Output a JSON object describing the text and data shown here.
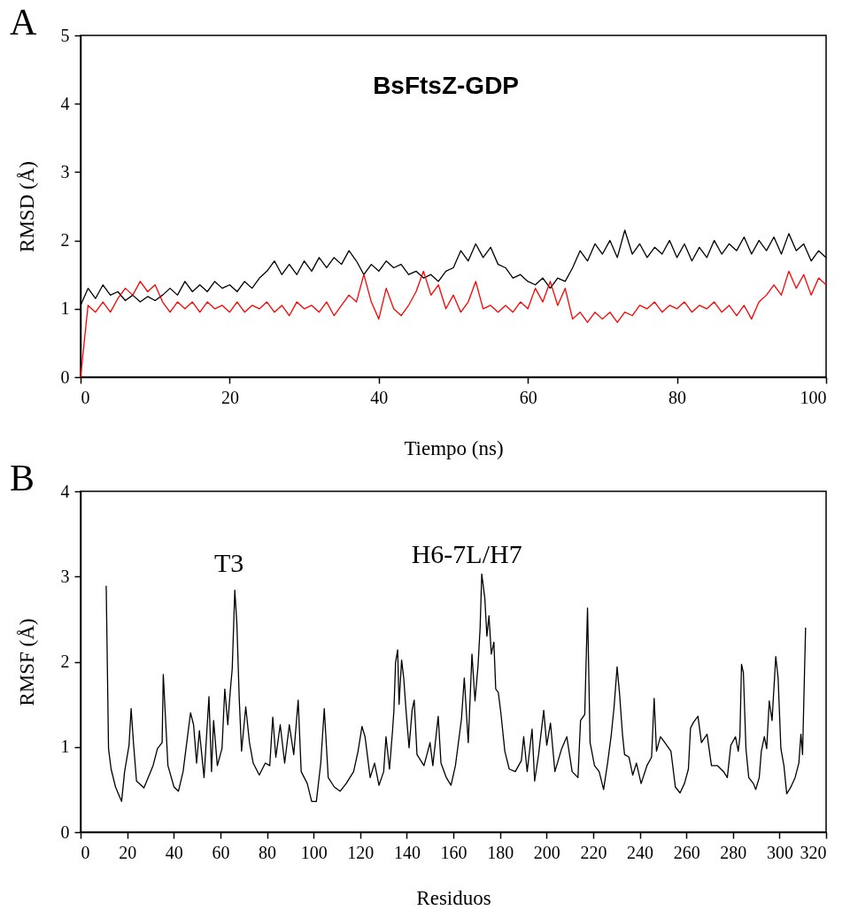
{
  "chart_data": [
    {
      "type": "line",
      "title": "A",
      "xlabel": "Tiempo (ns)",
      "ylabel": "RMSD (Å)",
      "xlim": [
        0,
        100
      ],
      "ylim": [
        0,
        5
      ],
      "xticks": [
        0,
        20,
        40,
        60,
        80,
        100
      ],
      "yticks": [
        0,
        1,
        2,
        3,
        4,
        5
      ],
      "annotations": [
        "BsFtsZ-GDP"
      ],
      "x": [
        0,
        1,
        2,
        3,
        4,
        5,
        6,
        7,
        8,
        9,
        10,
        11,
        12,
        13,
        14,
        15,
        16,
        17,
        18,
        19,
        20,
        21,
        22,
        23,
        24,
        25,
        26,
        27,
        28,
        29,
        30,
        31,
        32,
        33,
        34,
        35,
        36,
        37,
        38,
        39,
        40,
        41,
        42,
        43,
        44,
        45,
        46,
        47,
        48,
        49,
        50,
        51,
        52,
        53,
        54,
        55,
        56,
        57,
        58,
        59,
        60,
        61,
        62,
        63,
        64,
        65,
        66,
        67,
        68,
        69,
        70,
        71,
        72,
        73,
        74,
        75,
        76,
        77,
        78,
        79,
        80,
        81,
        82,
        83,
        84,
        85,
        86,
        87,
        88,
        89,
        90,
        91,
        92,
        93,
        94,
        95,
        96,
        97,
        98,
        99,
        100
      ],
      "series": [
        {
          "color": "#000000",
          "values": [
            1.05,
            1.3,
            1.15,
            1.35,
            1.2,
            1.25,
            1.12,
            1.2,
            1.1,
            1.18,
            1.12,
            1.2,
            1.3,
            1.2,
            1.4,
            1.25,
            1.35,
            1.25,
            1.4,
            1.3,
            1.35,
            1.25,
            1.4,
            1.3,
            1.45,
            1.55,
            1.7,
            1.5,
            1.65,
            1.5,
            1.7,
            1.55,
            1.75,
            1.6,
            1.75,
            1.65,
            1.85,
            1.7,
            1.5,
            1.65,
            1.55,
            1.7,
            1.6,
            1.65,
            1.5,
            1.55,
            1.45,
            1.5,
            1.4,
            1.55,
            1.6,
            1.85,
            1.7,
            1.95,
            1.75,
            1.9,
            1.65,
            1.6,
            1.45,
            1.5,
            1.4,
            1.35,
            1.45,
            1.3,
            1.45,
            1.4,
            1.6,
            1.85,
            1.7,
            1.95,
            1.8,
            2.0,
            1.75,
            2.15,
            1.8,
            1.95,
            1.75,
            1.9,
            1.8,
            2.0,
            1.75,
            1.95,
            1.7,
            1.9,
            1.75,
            2.0,
            1.8,
            1.95,
            1.85,
            2.05,
            1.8,
            2.0,
            1.85,
            2.05,
            1.8,
            2.1,
            1.85,
            1.95,
            1.7,
            1.85,
            1.75
          ]
        },
        {
          "color": "#ff0000",
          "values": [
            0,
            1.05,
            0.95,
            1.1,
            0.95,
            1.15,
            1.3,
            1.2,
            1.4,
            1.25,
            1.35,
            1.1,
            0.95,
            1.1,
            1.0,
            1.1,
            0.95,
            1.1,
            1.0,
            1.05,
            0.95,
            1.1,
            0.95,
            1.05,
            1.0,
            1.1,
            0.95,
            1.05,
            0.9,
            1.1,
            1.0,
            1.05,
            0.95,
            1.1,
            0.9,
            1.05,
            1.2,
            1.1,
            1.5,
            1.1,
            0.85,
            1.3,
            1.0,
            0.9,
            1.05,
            1.25,
            1.55,
            1.2,
            1.35,
            1.0,
            1.2,
            0.95,
            1.1,
            1.4,
            1.0,
            1.05,
            0.95,
            1.05,
            0.95,
            1.1,
            1.0,
            1.3,
            1.1,
            1.4,
            1.05,
            1.3,
            0.85,
            0.95,
            0.8,
            0.95,
            0.85,
            0.95,
            0.8,
            0.95,
            0.9,
            1.05,
            1.0,
            1.1,
            0.95,
            1.05,
            1.0,
            1.1,
            0.95,
            1.05,
            1.0,
            1.1,
            0.95,
            1.05,
            0.9,
            1.05,
            0.85,
            1.1,
            1.2,
            1.35,
            1.2,
            1.55,
            1.3,
            1.5,
            1.2,
            1.45,
            1.35
          ]
        }
      ]
    },
    {
      "type": "line",
      "title": "B",
      "xlabel": "Residuos",
      "ylabel": "RMSF (Å)",
      "xlim": [
        0,
        320
      ],
      "ylim": [
        0,
        4
      ],
      "xticks": [
        0,
        20,
        40,
        60,
        80,
        100,
        120,
        140,
        160,
        180,
        200,
        220,
        240,
        260,
        280,
        300,
        320
      ],
      "yticks": [
        0,
        1,
        2,
        3,
        4
      ],
      "annotations": [
        "T3",
        "H6-7L/H7"
      ],
      "x": [
        11,
        12,
        13.1,
        15,
        17.6,
        18.9,
        20.8,
        21.7,
        22.7,
        24,
        27.2,
        31.1,
        33,
        35,
        35.5,
        37.5,
        40.1,
        42,
        44,
        47.2,
        48.5,
        49.8,
        51,
        53,
        55.1,
        56.2,
        57.1,
        58.7,
        60.7,
        61.9,
        63.2,
        64.2,
        65.1,
        66.2,
        67.1,
        68.1,
        69.1,
        70.9,
        72.5,
        74.1,
        76.7,
        79.3,
        81.2,
        82.5,
        83.8,
        85.7,
        87.6,
        89.6,
        91.5,
        93.4,
        94.7,
        97.3,
        99.2,
        101.2,
        103.1,
        104.6,
        106.3,
        108.9,
        111.4,
        114,
        117.2,
        119.1,
        120.8,
        122.1,
        124.3,
        126.2,
        128.1,
        130.1,
        131.1,
        132.6,
        133.9,
        134.5,
        135.2,
        136.1,
        136.7,
        137.8,
        138.7,
        139.7,
        141,
        142.3,
        143.2,
        144.4,
        147.4,
        150,
        151.2,
        153.5,
        154.7,
        157,
        159,
        160.9,
        163.5,
        164.7,
        166.4,
        168,
        169.3,
        170.6,
        171.5,
        172.2,
        173.5,
        174.4,
        175.3,
        176.3,
        177.4,
        178.2,
        179.3,
        180.4,
        182.1,
        184,
        186.6,
        189.2,
        190.2,
        191.7,
        193.8,
        194.9,
        196.6,
        198.8,
        200.1,
        201.7,
        203.6,
        206.5,
        208.7,
        211,
        213.5,
        214.6,
        216.4,
        217.6,
        218.7,
        220.6,
        222.6,
        224.5,
        226.2,
        227.7,
        229,
        230.3,
        231.3,
        232.6,
        233.5,
        235.4,
        237,
        238.6,
        240.6,
        243.1,
        245.1,
        246.2,
        247.2,
        248.9,
        250.8,
        253.4,
        255.3,
        257.3,
        259.2,
        260.9,
        261.8,
        263.1,
        265,
        266.5,
        268.9,
        270.8,
        273.4,
        276,
        277.6,
        279.1,
        281.1,
        282.3,
        283,
        283.7,
        284.5,
        285.6,
        286.8,
        288.8,
        289.8,
        291.3,
        292.2,
        293.5,
        294.5,
        295.6,
        296.8,
        298.4,
        299.4,
        300.6,
        301.9,
        303.1,
        304.7,
        306.7,
        308.3,
        309.2,
        309.9,
        310.5,
        311.2
      ],
      "series": [
        {
          "color": "#000000",
          "values": [
            2.89,
            0.98,
            0.74,
            0.53,
            0.36,
            0.71,
            1.02,
            1.45,
            1.05,
            0.6,
            0.52,
            0.78,
            0.98,
            1.05,
            1.85,
            0.78,
            0.53,
            0.48,
            0.71,
            1.4,
            1.26,
            0.81,
            1.19,
            0.64,
            1.59,
            0.71,
            1.31,
            0.78,
            0.98,
            1.68,
            1.26,
            1.64,
            1.92,
            2.84,
            2.44,
            1.57,
            0.95,
            1.47,
            1.05,
            0.81,
            0.67,
            0.81,
            0.78,
            1.35,
            0.88,
            1.26,
            0.81,
            1.26,
            0.91,
            1.55,
            0.71,
            0.57,
            0.36,
            0.36,
            0.81,
            1.45,
            0.64,
            0.53,
            0.48,
            0.57,
            0.71,
            0.95,
            1.24,
            1.12,
            0.64,
            0.81,
            0.55,
            0.71,
            1.12,
            0.74,
            1.19,
            1.43,
            1.99,
            2.14,
            1.5,
            2.02,
            1.81,
            1.43,
            0.99,
            1.43,
            1.55,
            0.91,
            0.78,
            1.05,
            0.78,
            1.36,
            0.81,
            0.64,
            0.55,
            0.78,
            1.33,
            1.81,
            1.05,
            2.09,
            1.54,
            1.95,
            2.4,
            3.03,
            2.75,
            2.3,
            2.54,
            2.09,
            2.23,
            1.68,
            1.64,
            1.4,
            0.95,
            0.74,
            0.71,
            0.84,
            1.12,
            0.71,
            1.21,
            0.6,
            0.91,
            1.43,
            1.02,
            1.28,
            0.71,
            0.98,
            1.12,
            0.71,
            0.64,
            1.31,
            1.38,
            2.63,
            1.05,
            0.78,
            0.71,
            0.5,
            0.81,
            1.12,
            1.47,
            1.94,
            1.64,
            1.15,
            0.91,
            0.88,
            0.67,
            0.81,
            0.57,
            0.78,
            0.88,
            1.57,
            0.95,
            1.12,
            1.05,
            0.95,
            0.53,
            0.46,
            0.57,
            0.74,
            1.22,
            1.29,
            1.36,
            1.05,
            1.15,
            0.78,
            0.78,
            0.71,
            0.64,
            1.02,
            1.12,
            0.95,
            1.12,
            1.97,
            1.87,
            0.98,
            0.64,
            0.57,
            0.5,
            0.64,
            0.95,
            1.12,
            0.98,
            1.54,
            1.31,
            2.06,
            1.81,
            0.98,
            0.78,
            0.45,
            0.52,
            0.64,
            0.81,
            1.15,
            0.91,
            1.61,
            2.4
          ]
        }
      ]
    }
  ]
}
